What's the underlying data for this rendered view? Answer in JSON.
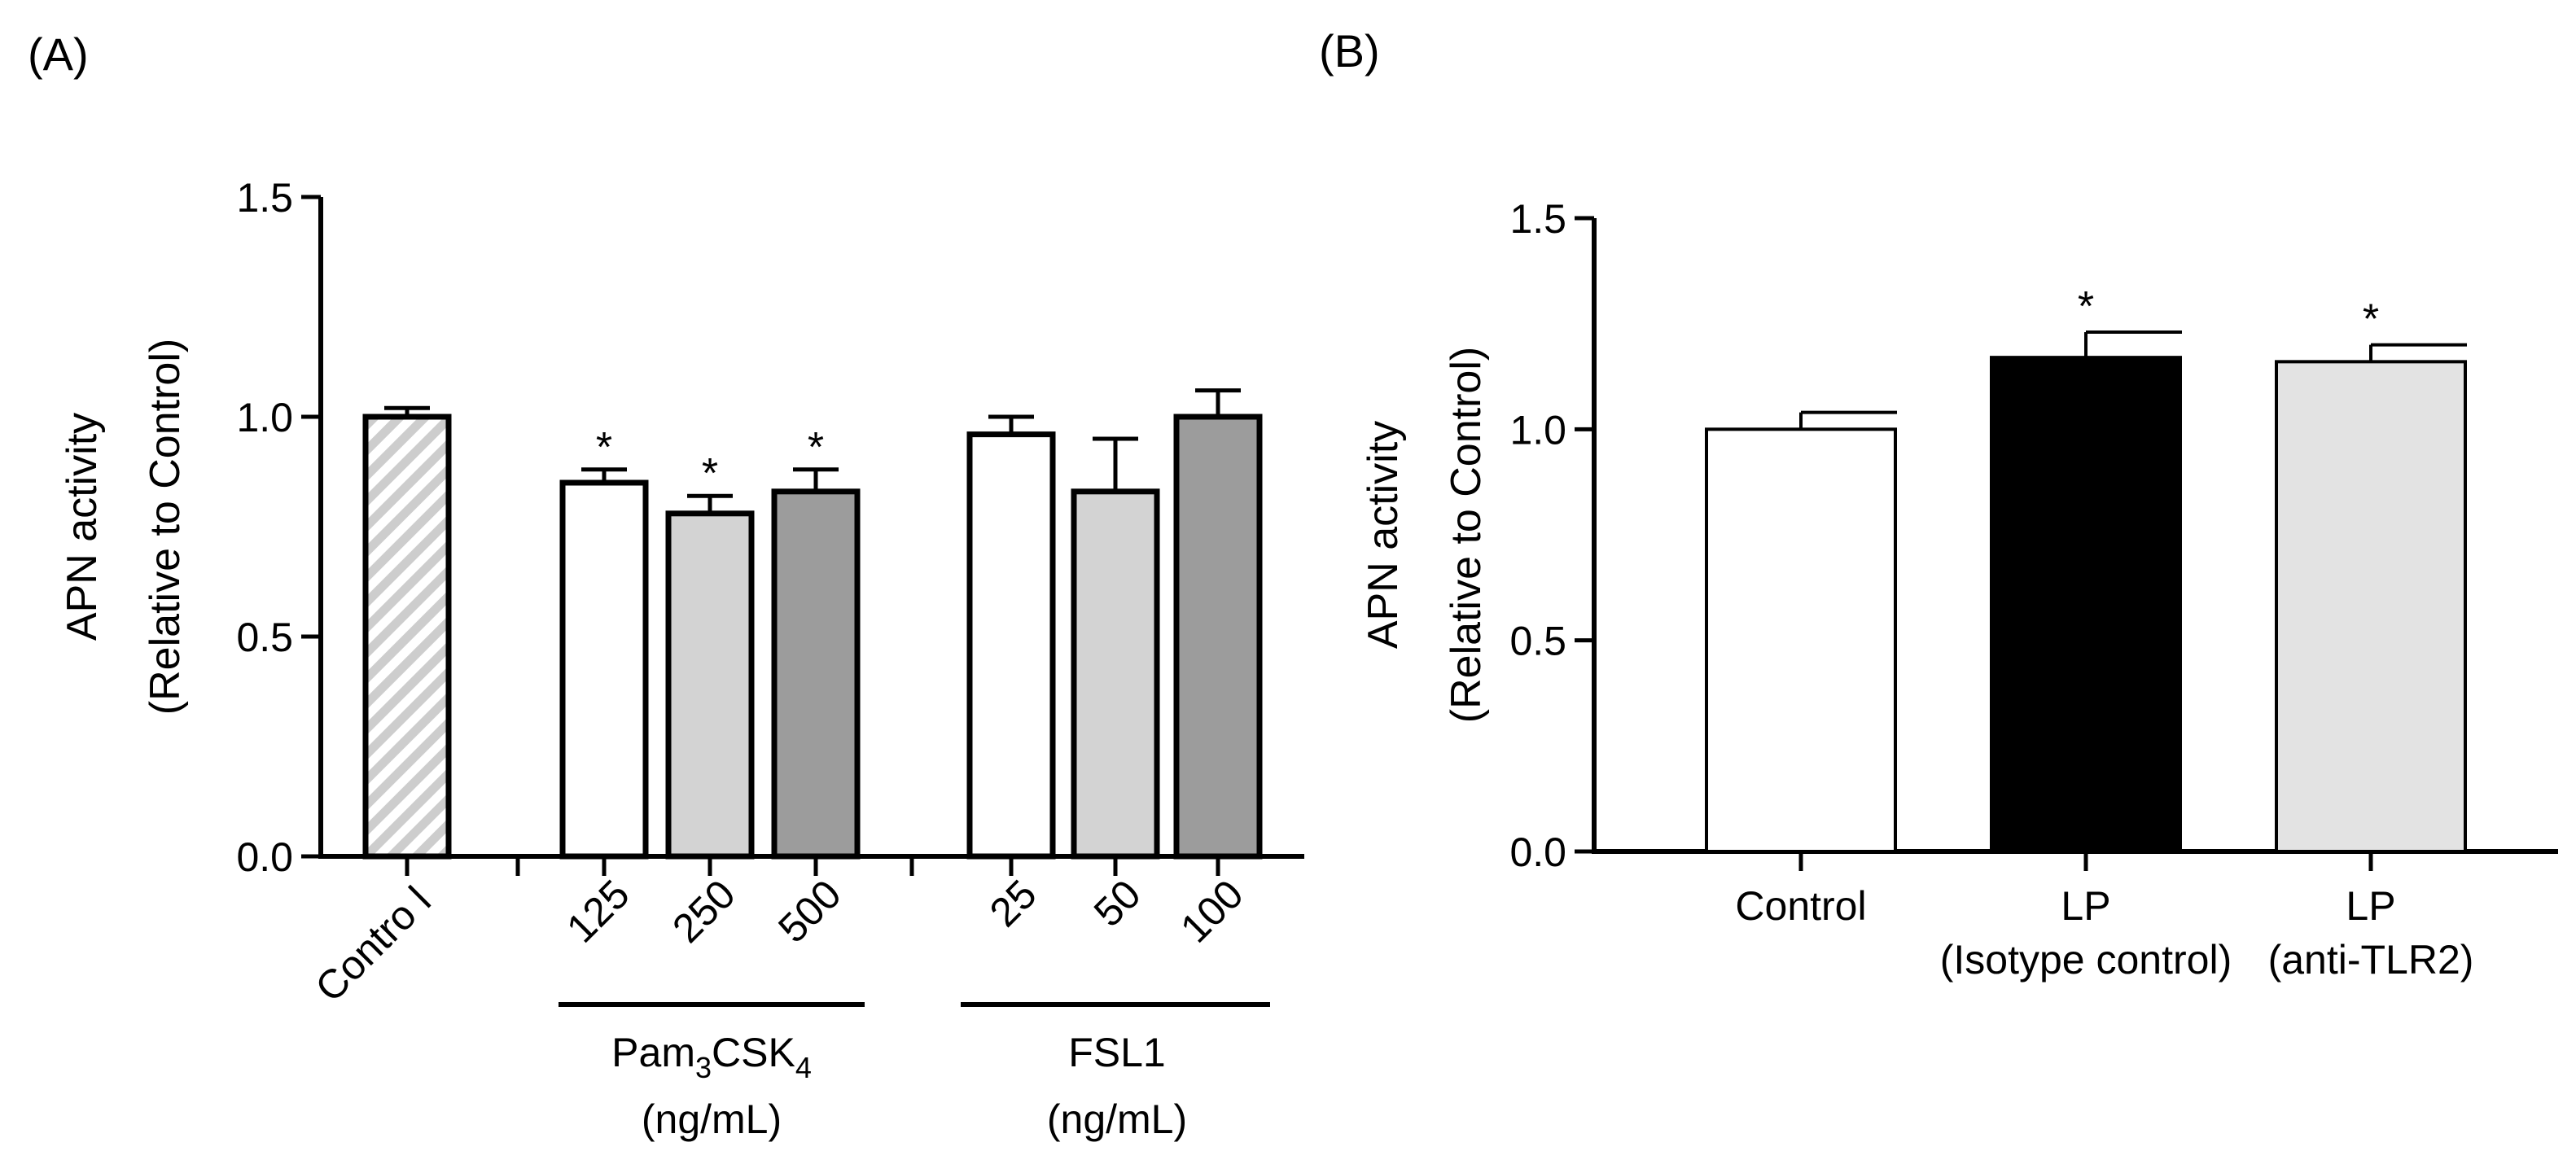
{
  "panels": {
    "a": {
      "label": "(A)"
    },
    "b": {
      "label": "(B)"
    }
  },
  "chart_data": [
    {
      "panel": "A",
      "type": "bar",
      "title": "",
      "ylabel_line1": "APN activity",
      "ylabel_line2": "(Relative to Control)",
      "ylim": [
        0,
        1.5
      ],
      "yticks": [
        "0.0",
        "0.5",
        "1.0",
        "1.5"
      ],
      "yticks_values": [
        0,
        0.5,
        1.0,
        1.5
      ],
      "bars": [
        {
          "label": "Control",
          "tick_label": "Contro l",
          "value": 1.0,
          "error": 0.02,
          "significant": false,
          "fill": "#d0d0d0",
          "pattern": "hatch"
        },
        {
          "label": "125",
          "value": 0.85,
          "error": 0.03,
          "significant": true,
          "fill": "#ffffff",
          "group": "Pam3CSK4"
        },
        {
          "label": "250",
          "value": 0.78,
          "error": 0.04,
          "significant": true,
          "fill": "#d3d3d3",
          "group": "Pam3CSK4"
        },
        {
          "label": "500",
          "value": 0.83,
          "error": 0.05,
          "significant": true,
          "fill": "#9c9c9c",
          "group": "Pam3CSK4"
        },
        {
          "label": "25",
          "value": 0.96,
          "error": 0.04,
          "significant": false,
          "fill": "#ffffff",
          "group": "FSL1"
        },
        {
          "label": "50",
          "value": 0.83,
          "error": 0.12,
          "significant": false,
          "fill": "#d3d3d3",
          "group": "FSL1"
        },
        {
          "label": "100",
          "value": 1.0,
          "error": 0.06,
          "significant": false,
          "fill": "#9c9c9c",
          "group": "FSL1"
        }
      ],
      "groups": [
        {
          "name": "Pam3CSK4",
          "name_base": "Pam",
          "name_sub1": "3",
          "name_mid": "CSK",
          "name_sub2": "4",
          "unit": "(ng/mL)"
        },
        {
          "name": "FSL1",
          "unit": "(ng/mL)"
        }
      ],
      "significance_marker": "*"
    },
    {
      "panel": "B",
      "type": "bar",
      "title": "",
      "ylabel_line1": "APN activity",
      "ylabel_line2": "(Relative to Control)",
      "ylim": [
        0,
        1.5
      ],
      "yticks": [
        "0.0",
        "0.5",
        "1.0",
        "1.5"
      ],
      "yticks_values": [
        0,
        0.5,
        1.0,
        1.5
      ],
      "bars": [
        {
          "label_line1": "Control",
          "label_line2": "",
          "value": 1.0,
          "error": 0.04,
          "significant": false,
          "fill": "#ffffff"
        },
        {
          "label_line1": "LP",
          "label_line2": "(Isotype control)",
          "value": 1.17,
          "error": 0.06,
          "significant": true,
          "fill": "#000000"
        },
        {
          "label_line1": "LP",
          "label_line2": "(anti-TLR2)",
          "value": 1.16,
          "error": 0.04,
          "significant": true,
          "fill": "#e3e3e3"
        }
      ],
      "significance_marker": "*"
    }
  ]
}
